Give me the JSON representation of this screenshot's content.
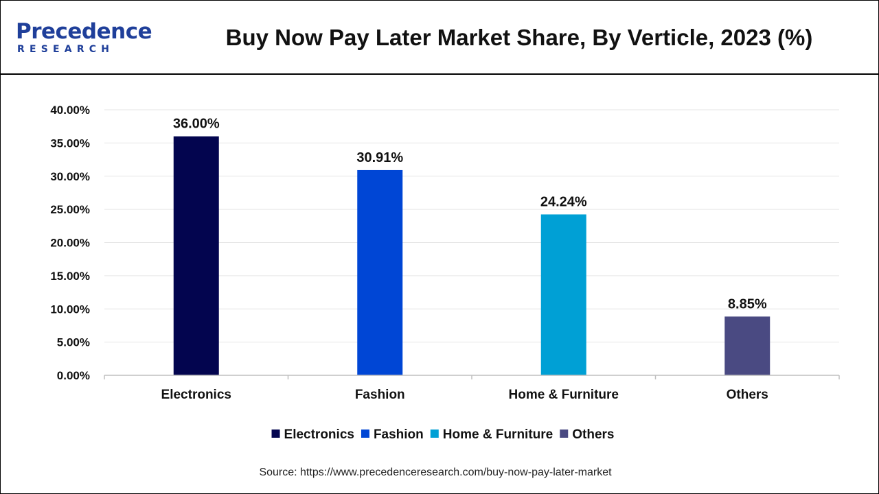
{
  "header": {
    "logo_top": "Precedence",
    "logo_bottom": "RESEARCH",
    "title": "Buy Now Pay Later Market Share, By Verticle, 2023 (%)"
  },
  "source": "Source: https://www.precedenceresearch.com/buy-now-pay-later-market",
  "chart_data": {
    "type": "bar",
    "title": "Buy Now Pay Later Market Share, By Verticle, 2023 (%)",
    "categories": [
      "Electronics",
      "Fashion",
      "Home & Furniture",
      "Others"
    ],
    "values": [
      36.0,
      30.91,
      24.24,
      8.85
    ],
    "value_labels": [
      "36.00%",
      "30.91%",
      "24.24%",
      "8.85%"
    ],
    "colors": [
      "#03054f",
      "#0046d5",
      "#00a0d5",
      "#4a4a82"
    ],
    "xlabel": "",
    "ylabel": "",
    "ylim": [
      0,
      40
    ],
    "yticks": [
      0,
      5,
      10,
      15,
      20,
      25,
      30,
      35,
      40
    ],
    "ytick_labels": [
      "0.00%",
      "5.00%",
      "10.00%",
      "15.00%",
      "20.00%",
      "25.00%",
      "30.00%",
      "35.00%",
      "40.00%"
    ],
    "grid": true,
    "legend": {
      "position": "bottom",
      "entries": [
        "Electronics",
        "Fashion",
        "Home & Furniture",
        "Others"
      ]
    }
  }
}
